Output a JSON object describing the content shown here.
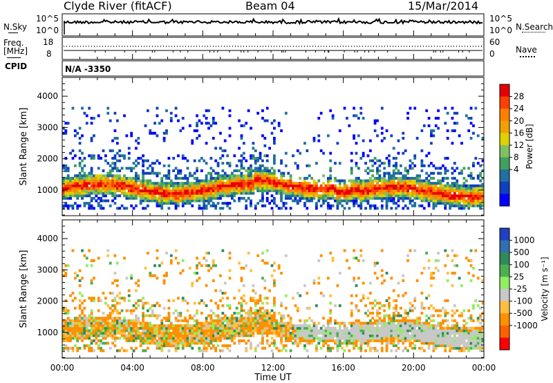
{
  "header": {
    "radar": "Clyde River (fitACF)",
    "beam": "Beam 04",
    "date": "15/Mar/2014"
  },
  "top_panels": {
    "nsky_label": "N.Sky",
    "nsky_ticks": [
      "10^5",
      "10^0"
    ],
    "nsearch_label": "N.Search",
    "nsearch_ticks": [
      "10^5",
      "10^0"
    ],
    "freq_label_1": "Freq.",
    "freq_label_2": "[MHz]",
    "freq_ticks": [
      "18",
      "8"
    ],
    "nave_label": "Nave",
    "nave_ticks": [
      "60",
      "0"
    ],
    "cpid_label": "CPID",
    "cpid_value": "N/A -3350"
  },
  "chart_data": [
    {
      "type": "heatmap",
      "parameter": "Power",
      "ylabel": "Slant Range [km]",
      "xlabel": "Time UT",
      "xlim": [
        "00:00",
        "24:00"
      ],
      "x_ticks": [
        "00:00",
        "04:00",
        "08:00",
        "12:00",
        "16:00",
        "20:00",
        "00:00"
      ],
      "ylim": [
        180,
        4600
      ],
      "y_ticks": [
        1000,
        2000,
        3000,
        4000
      ],
      "colorbar_label": "Power [dB]",
      "colorbar_ticks": [
        "28",
        "24",
        "20",
        "16",
        "12",
        "8",
        "4"
      ],
      "colorbar_colors": [
        "#e60000",
        "#ff4000",
        "#ff8000",
        "#f0a000",
        "#e0d000",
        "#80c060",
        "#40a060",
        "#2070a0",
        "#1040c0",
        "#0000ff"
      ],
      "colorbar_range": [
        0,
        32
      ]
    },
    {
      "type": "heatmap",
      "parameter": "Velocity",
      "ylabel": "Slant Range [km]",
      "xlabel": "Time UT",
      "xlim": [
        "00:00",
        "24:00"
      ],
      "x_ticks": [
        "00:00",
        "04:00",
        "08:00",
        "12:00",
        "16:00",
        "20:00",
        "00:00"
      ],
      "ylim": [
        180,
        4600
      ],
      "y_ticks": [
        1000,
        2000,
        3000,
        4000
      ],
      "colorbar_label": "Velocity [m s⁻¹]",
      "colorbar_ticks": [
        "1000",
        "500",
        "100",
        "25",
        "-25",
        "-100",
        "-500",
        "-1000"
      ],
      "colorbar_colors": [
        "#2040c0",
        "#3070b0",
        "#2e8b57",
        "#4caf50",
        "#90ee60",
        "#c8c8c8",
        "#ffc040",
        "#ff9000",
        "#ff6000",
        "#ff0000"
      ]
    }
  ]
}
